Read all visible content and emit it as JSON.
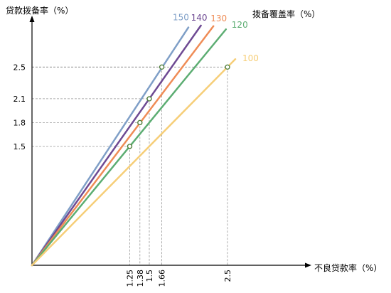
{
  "chart_data": {
    "type": "line",
    "ylabel": "贷款拨备率（%）",
    "xlabel": "不良贷款率（%）",
    "legend_title": "拨备覆盖率（%）",
    "xlim": [
      0,
      3.5
    ],
    "ylim": [
      0,
      3.05
    ],
    "y_ticks": [
      1.5,
      1.8,
      2.1,
      2.5
    ],
    "y_tick_labels": [
      "1.5",
      "1.8",
      "2.1",
      "2.5"
    ],
    "x_ticks": [
      1.25,
      1.38,
      1.5,
      1.66,
      2.5
    ],
    "x_tick_labels": [
      "1.25",
      "1.38",
      "1.5",
      "1.66",
      "2.5"
    ],
    "series": [
      {
        "name": "150",
        "slope": 1.5,
        "x_end": 2.0,
        "color": "#7f9fc7"
      },
      {
        "name": "140",
        "slope": 1.4,
        "x_end": 2.16,
        "color": "#6e4a93"
      },
      {
        "name": "130",
        "slope": 1.3,
        "x_end": 2.32,
        "color": "#ef8c56"
      },
      {
        "name": "120",
        "slope": 1.2,
        "x_end": 2.48,
        "color": "#5cad72"
      },
      {
        "name": "100",
        "slope": 1.0,
        "x_end": 2.6,
        "color": "#f6ce78"
      }
    ],
    "highlight_points": [
      {
        "x": 1.25,
        "y": 1.5
      },
      {
        "x": 1.38,
        "y": 1.8
      },
      {
        "x": 1.5,
        "y": 2.1
      },
      {
        "x": 1.66,
        "y": 2.5
      },
      {
        "x": 2.5,
        "y": 2.5
      }
    ],
    "grid": false
  }
}
